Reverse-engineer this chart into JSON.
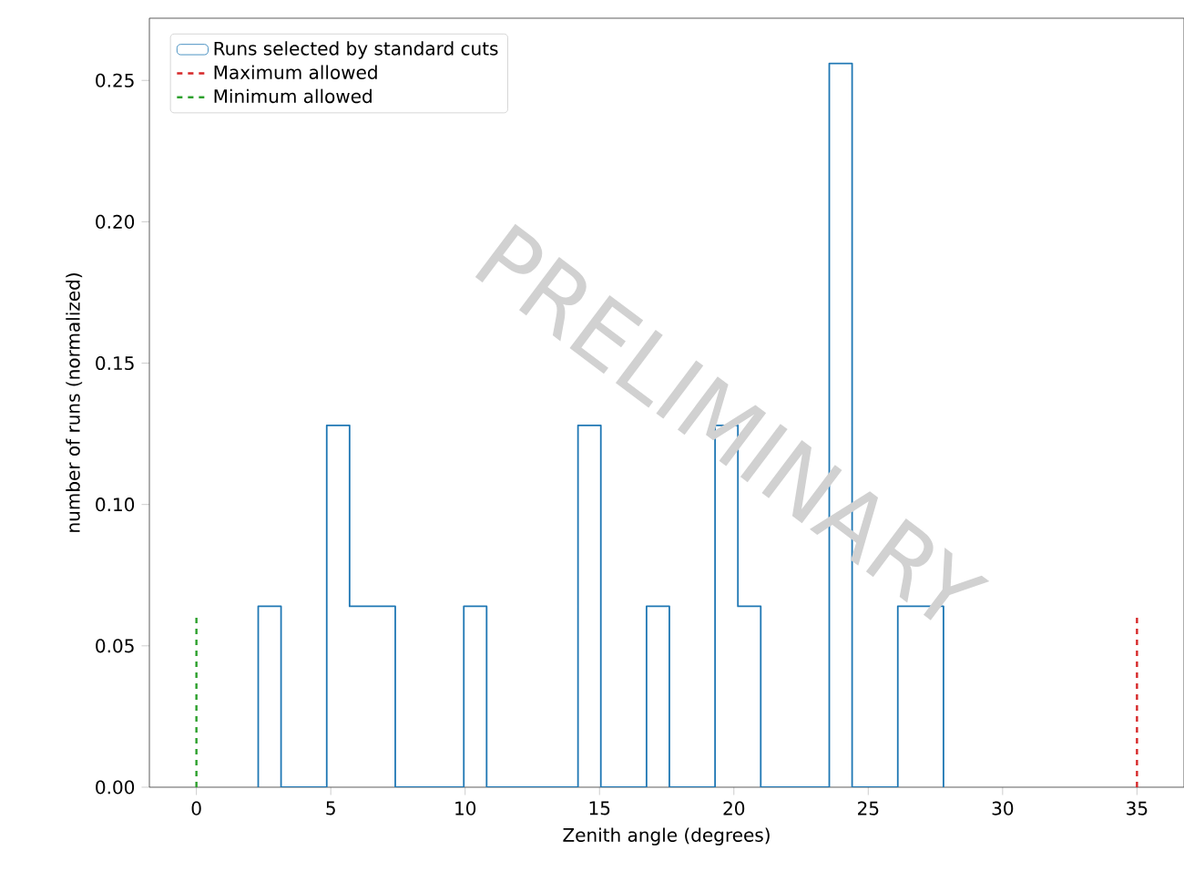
{
  "chart_data": {
    "type": "histogram",
    "xlabel": "Zenith angle (degrees)",
    "ylabel": "number of runs (normalized)",
    "series": [
      {
        "name": "Runs selected by standard cuts",
        "color": "#1f77b4",
        "values": [
          0.064,
          0,
          0,
          0.128,
          0.064,
          0.064,
          0,
          0,
          0,
          0.064,
          0,
          0,
          0,
          0,
          0.128,
          0,
          0,
          0.064,
          0,
          0,
          0.128,
          0.064,
          0,
          0,
          0,
          0.256,
          0,
          0,
          0.064,
          0.064
        ]
      }
    ],
    "bins": [
      2.3,
      3.15,
      4.0,
      4.85,
      5.7,
      6.55,
      7.4,
      8.25,
      9.1,
      9.95,
      10.8,
      11.65,
      12.5,
      13.35,
      14.2,
      15.05,
      15.9,
      16.75,
      17.6,
      18.45,
      19.3,
      20.15,
      21.0,
      21.85,
      22.7,
      23.55,
      24.4,
      25.25,
      26.1,
      26.95,
      27.8
    ],
    "ref_lines": [
      {
        "axis": "x",
        "value": 35,
        "label": "Maximum allowed",
        "color": "#d62728",
        "line_style": "dashed"
      },
      {
        "axis": "x",
        "value": 0,
        "label": "Minimum allowed",
        "color": "#2ca02c",
        "line_style": "dashed"
      }
    ],
    "xlim": [
      -1.75,
      36.75
    ],
    "ylim": [
      0,
      0.272
    ],
    "xticks": [
      {
        "value": 0,
        "label": "0"
      },
      {
        "value": 5,
        "label": "5"
      },
      {
        "value": 10,
        "label": "10"
      },
      {
        "value": 15,
        "label": "15"
      },
      {
        "value": 20,
        "label": "20"
      },
      {
        "value": 25,
        "label": "25"
      },
      {
        "value": 30,
        "label": "30"
      },
      {
        "value": 35,
        "label": "35"
      }
    ],
    "yticks": [
      {
        "value": 0,
        "label": "0.00"
      },
      {
        "value": 0.05,
        "label": "0.05"
      },
      {
        "value": 0.1,
        "label": "0.10"
      },
      {
        "value": 0.15,
        "label": "0.15"
      },
      {
        "value": 0.2,
        "label": "0.20"
      },
      {
        "value": 0.25,
        "label": "0.25"
      }
    ],
    "legend": "top left",
    "grid": false,
    "annotations": [
      "PRELIMINARY"
    ]
  }
}
